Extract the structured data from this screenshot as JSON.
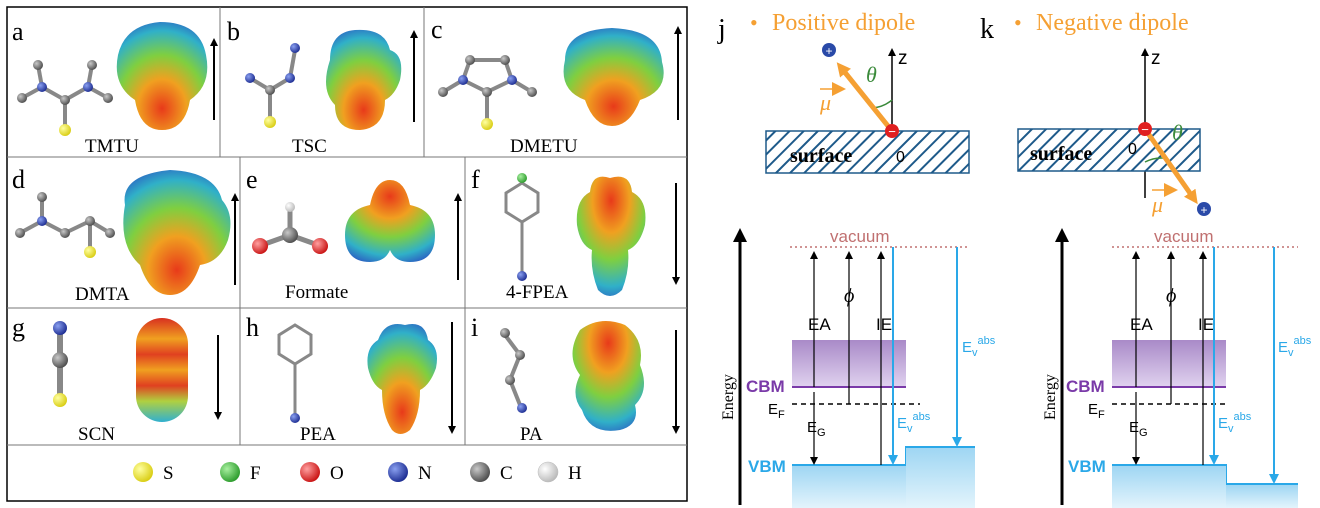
{
  "left_panel": {
    "cells": [
      {
        "letter": "a",
        "name": "TMTU"
      },
      {
        "letter": "b",
        "name": "TSC"
      },
      {
        "letter": "c",
        "name": "DMETU"
      },
      {
        "letter": "d",
        "name": "DMTA"
      },
      {
        "letter": "e",
        "name": "Formate"
      },
      {
        "letter": "f",
        "name": "4-FPEA"
      },
      {
        "letter": "g",
        "name": "SCN"
      },
      {
        "letter": "h",
        "name": "PEA"
      },
      {
        "letter": "i",
        "name": "PA"
      }
    ],
    "legend": [
      {
        "symbol": "S",
        "color": "#e8e020"
      },
      {
        "symbol": "F",
        "color": "#3cb43c"
      },
      {
        "symbol": "O",
        "color": "#e02020"
      },
      {
        "symbol": "N",
        "color": "#2a3ca8"
      },
      {
        "symbol": "C",
        "color": "#7a7a7a"
      },
      {
        "symbol": "H",
        "color": "#e6e6e6"
      }
    ]
  },
  "panel_j": {
    "letter": "j",
    "title": "Positive dipole",
    "bullet": "•",
    "z": "z",
    "theta": "θ",
    "mu": "μ",
    "plus": "+",
    "minus": "−",
    "surface": "surface",
    "zero": "0",
    "vacuum": "vacuum",
    "ea": "EA",
    "phi": "ϕ",
    "ie": "IE",
    "cbm": "CBM",
    "vbm": "VBM",
    "ef": "E",
    "ef_sub": "F",
    "eg": "E",
    "eg_sub": "G",
    "ev": "E",
    "ev_sub": "v",
    "ev_sup": "abs",
    "energy": "Energy"
  },
  "panel_k": {
    "letter": "k",
    "title": "Negative dipole",
    "bullet": "•",
    "z": "z",
    "theta": "θ",
    "mu": "μ",
    "plus": "+",
    "minus": "−",
    "surface": "surface",
    "zero": "0",
    "vacuum": "vacuum",
    "ea": "EA",
    "phi": "ϕ",
    "ie": "IE",
    "cbm": "CBM",
    "vbm": "VBM",
    "ef": "E",
    "ef_sub": "F",
    "eg": "E",
    "eg_sub": "G",
    "ev": "E",
    "ev_sub": "v",
    "ev_sup": "abs",
    "energy": "Energy"
  },
  "colors": {
    "orange": "#f5a033",
    "blue": "#2aa8e8",
    "purple": "#7a3aa8",
    "vacuum": "#c07070",
    "theta_green": "#3a8a3a",
    "hatch": "#1e5a8a",
    "plus_ball": "#2a4aa8",
    "minus_ball": "#e02020"
  }
}
